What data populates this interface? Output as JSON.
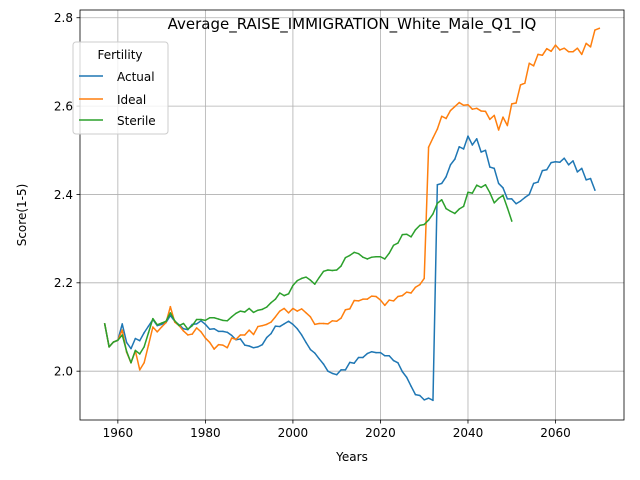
{
  "chart_data": {
    "type": "line",
    "title": "Average_RAISE_IMMIGRATION_White_Male_Q1_IQ",
    "xlabel": "Years",
    "ylabel": "Score(1-5)",
    "xlim": [
      1951.35,
      2075.65
    ],
    "ylim": [
      1.8895,
      2.8175
    ],
    "xticks": [
      1960,
      1980,
      2000,
      2020,
      2040,
      2060
    ],
    "yticks": [
      2.0,
      2.2,
      2.4,
      2.6,
      2.8
    ],
    "xtick_labels": [
      "1960",
      "1980",
      "2000",
      "2020",
      "2040",
      "2060"
    ],
    "ytick_labels": [
      "2.0",
      "2.2",
      "2.4",
      "2.6",
      "2.8"
    ],
    "grid": true,
    "legend": {
      "title": "Fertility",
      "position": "upper left"
    },
    "series": [
      {
        "name": "Actual",
        "color": "#1f77b4",
        "x_start": 1957,
        "values": [
          2.107,
          2.055,
          2.066,
          2.07,
          2.107,
          2.065,
          2.051,
          2.074,
          2.069,
          2.087,
          2.102,
          2.117,
          2.103,
          2.106,
          2.11,
          2.126,
          2.113,
          2.105,
          2.096,
          2.094,
          2.106,
          2.107,
          2.114,
          2.106,
          2.095,
          2.096,
          2.09,
          2.09,
          2.088,
          2.081,
          2.071,
          2.073,
          2.059,
          2.057,
          2.053,
          2.055,
          2.06,
          2.076,
          2.085,
          2.102,
          2.101,
          2.107,
          2.113,
          2.106,
          2.096,
          2.082,
          2.065,
          2.049,
          2.041,
          2.028,
          2.016,
          2.0,
          1.995,
          1.992,
          2.003,
          2.003,
          2.02,
          2.018,
          2.031,
          2.031,
          2.04,
          2.044,
          2.042,
          2.042,
          2.035,
          2.035,
          2.024,
          2.019,
          1.999,
          1.986,
          1.966,
          1.947,
          1.945,
          1.935,
          1.939,
          1.934,
          2.422,
          2.425,
          2.44,
          2.467,
          2.48,
          2.508,
          2.503,
          2.532,
          2.512,
          2.526,
          2.496,
          2.5,
          2.462,
          2.459,
          2.425,
          2.415,
          2.39,
          2.39,
          2.379,
          2.385,
          2.393,
          2.4,
          2.425,
          2.428,
          2.454,
          2.456,
          2.472,
          2.474,
          2.473,
          2.482,
          2.467,
          2.476,
          2.451,
          2.459,
          2.433,
          2.436,
          2.41
        ]
      },
      {
        "name": "Ideal",
        "color": "#ff7f0e",
        "x_start": 1957,
        "values": [
          2.107,
          2.055,
          2.066,
          2.07,
          2.093,
          2.043,
          2.019,
          2.046,
          2.003,
          2.019,
          2.059,
          2.1,
          2.089,
          2.1,
          2.11,
          2.146,
          2.111,
          2.103,
          2.091,
          2.082,
          2.084,
          2.098,
          2.089,
          2.075,
          2.065,
          2.05,
          2.06,
          2.059,
          2.053,
          2.075,
          2.072,
          2.082,
          2.082,
          2.093,
          2.083,
          2.101,
          2.103,
          2.106,
          2.111,
          2.123,
          2.136,
          2.142,
          2.132,
          2.142,
          2.136,
          2.141,
          2.132,
          2.123,
          2.106,
          2.108,
          2.108,
          2.107,
          2.114,
          2.113,
          2.12,
          2.139,
          2.141,
          2.16,
          2.159,
          2.163,
          2.163,
          2.17,
          2.169,
          2.161,
          2.149,
          2.161,
          2.159,
          2.169,
          2.171,
          2.179,
          2.177,
          2.19,
          2.196,
          2.21,
          2.507,
          2.528,
          2.548,
          2.577,
          2.572,
          2.59,
          2.599,
          2.608,
          2.602,
          2.603,
          2.593,
          2.595,
          2.589,
          2.588,
          2.57,
          2.579,
          2.546,
          2.575,
          2.556,
          2.605,
          2.607,
          2.648,
          2.652,
          2.697,
          2.691,
          2.717,
          2.715,
          2.73,
          2.724,
          2.738,
          2.727,
          2.731,
          2.723,
          2.723,
          2.731,
          2.717,
          2.742,
          2.734,
          2.772,
          2.776
        ]
      },
      {
        "name": "Sterile",
        "color": "#2ca02c",
        "x_start": 1957,
        "values": [
          2.107,
          2.055,
          2.066,
          2.07,
          2.082,
          2.045,
          2.019,
          2.047,
          2.039,
          2.055,
          2.087,
          2.119,
          2.105,
          2.109,
          2.113,
          2.132,
          2.114,
          2.103,
          2.108,
          2.095,
          2.103,
          2.117,
          2.117,
          2.115,
          2.121,
          2.121,
          2.118,
          2.115,
          2.114,
          2.123,
          2.131,
          2.136,
          2.134,
          2.142,
          2.133,
          2.138,
          2.14,
          2.145,
          2.155,
          2.163,
          2.177,
          2.171,
          2.175,
          2.194,
          2.205,
          2.21,
          2.213,
          2.206,
          2.197,
          2.212,
          2.226,
          2.229,
          2.228,
          2.229,
          2.238,
          2.257,
          2.262,
          2.269,
          2.266,
          2.258,
          2.254,
          2.258,
          2.259,
          2.259,
          2.254,
          2.267,
          2.285,
          2.29,
          2.309,
          2.31,
          2.304,
          2.32,
          2.33,
          2.332,
          2.342,
          2.356,
          2.38,
          2.388,
          2.368,
          2.362,
          2.357,
          2.367,
          2.373,
          2.405,
          2.403,
          2.421,
          2.416,
          2.422,
          2.404,
          2.381,
          2.391,
          2.398,
          2.37,
          2.34
        ]
      }
    ]
  }
}
